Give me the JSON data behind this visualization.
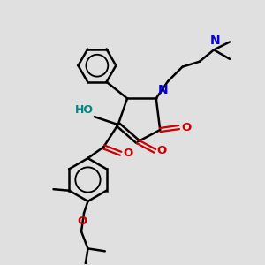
{
  "bg_color": "#e0e0e0",
  "bond_color": "#000000",
  "N_color": "#0000dd",
  "O_color": "#cc0000",
  "OH_color": "#008888",
  "line_width": 1.8,
  "font_size": 8.5,
  "fig_w": 3.0,
  "fig_h": 3.0,
  "dpi": 100,
  "xlim": [
    0,
    10
  ],
  "ylim": [
    0,
    10
  ]
}
